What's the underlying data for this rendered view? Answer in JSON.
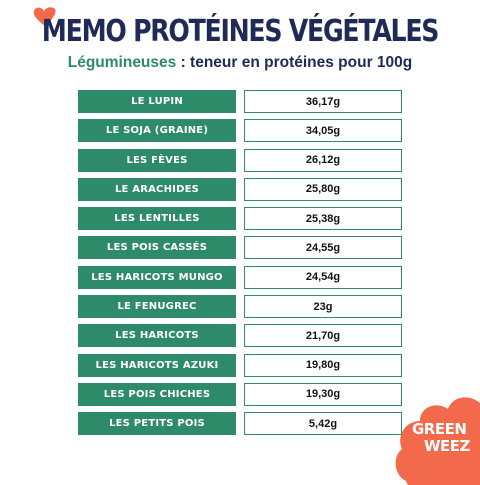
{
  "header": {
    "title": "MEMO PROTÉINES VÉGÉTALES",
    "subtitle_accent": "Légumineuses",
    "subtitle_rest": " : teneur en protéines pour 100g"
  },
  "table": {
    "rows": [
      {
        "name": "LE LUPIN",
        "value": "36,17g"
      },
      {
        "name": "LE SOJA (GRAINE)",
        "value": "34,05g"
      },
      {
        "name": "LES FÈVES",
        "value": "26,12g"
      },
      {
        "name": "LE ARACHIDES",
        "value": "25,80g"
      },
      {
        "name": "LES LENTILLES",
        "value": "25,38g"
      },
      {
        "name": "LES POIS CASSÉS",
        "value": "24,55g"
      },
      {
        "name": "LES HARICOTS MUNGO",
        "value": "24,54g"
      },
      {
        "name": "LE FENUGREC",
        "value": "23g"
      },
      {
        "name": "LES HARICOTS",
        "value": "21,70g"
      },
      {
        "name": "LES HARICOTS AZUKI",
        "value": "19,80g"
      },
      {
        "name": "LES POIS CHICHES",
        "value": "19,30g"
      },
      {
        "name": "LES PETITS POIS",
        "value": "5,42g"
      }
    ]
  },
  "logo": {
    "line1": "GREEN",
    "line2": "WEEZ"
  },
  "colors": {
    "navy": "#1f2a56",
    "green": "#2e8b6a",
    "coral": "#f26a4b"
  }
}
